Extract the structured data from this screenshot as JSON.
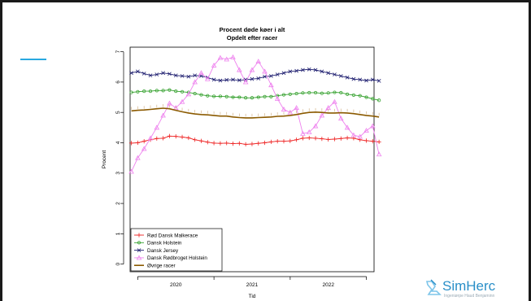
{
  "slide": {
    "logo_text": "SimHerc",
    "logo_subtitle": "Ingeniørpe Haud Benjaminn"
  },
  "chart_data": {
    "type": "line",
    "title": "Procent døde køer i alt",
    "subtitle": "Opdelt efter racer",
    "xlabel": "Tid",
    "ylabel": "Procent",
    "xlim": [
      2019.4,
      2022.6
    ],
    "ylim": [
      -0.25,
      7.15
    ],
    "xticks": [
      2020,
      2021,
      2022
    ],
    "yticks": [
      0,
      1,
      2,
      3,
      4,
      5,
      6,
      7
    ],
    "legend_position": "bottom-left",
    "x_start": 2019.4167,
    "x_step": 0.0833,
    "series": [
      {
        "name": "Rød Dansk Malkerace",
        "color": "#ee2222",
        "marker": "plus",
        "values": [
          3.99,
          4.0,
          4.05,
          4.1,
          4.14,
          4.15,
          4.22,
          4.21,
          4.19,
          4.16,
          4.1,
          4.06,
          4.02,
          3.99,
          3.98,
          3.99,
          3.97,
          3.98,
          3.95,
          3.96,
          3.98,
          4.0,
          4.03,
          4.05,
          4.05,
          4.06,
          4.1,
          4.15,
          4.16,
          4.15,
          4.13,
          4.11,
          4.12,
          4.14,
          4.16,
          4.15,
          4.1,
          4.07,
          4.05,
          4.03
        ]
      },
      {
        "name": "Dansk Holstein",
        "color": "#33a02c",
        "marker": "circle",
        "values": [
          5.66,
          5.68,
          5.7,
          5.7,
          5.72,
          5.72,
          5.74,
          5.7,
          5.68,
          5.66,
          5.62,
          5.58,
          5.55,
          5.53,
          5.53,
          5.52,
          5.5,
          5.5,
          5.48,
          5.48,
          5.5,
          5.52,
          5.52,
          5.55,
          5.58,
          5.6,
          5.62,
          5.64,
          5.65,
          5.65,
          5.63,
          5.64,
          5.66,
          5.65,
          5.6,
          5.57,
          5.55,
          5.5,
          5.45,
          5.4
        ]
      },
      {
        "name": "Dansk Jersey",
        "color": "#1c1c6e",
        "marker": "x",
        "values": [
          6.3,
          6.35,
          6.28,
          6.22,
          6.25,
          6.3,
          6.27,
          6.22,
          6.2,
          6.18,
          6.22,
          6.2,
          6.15,
          6.08,
          6.05,
          6.07,
          6.08,
          6.06,
          6.08,
          6.1,
          6.12,
          6.18,
          6.2,
          6.25,
          6.3,
          6.35,
          6.37,
          6.4,
          6.42,
          6.4,
          6.35,
          6.3,
          6.25,
          6.2,
          6.15,
          6.1,
          6.08,
          6.05,
          6.08,
          6.04
        ]
      },
      {
        "name": "Dansk Rødbroget Holstein",
        "color": "#ee82ee",
        "marker": "triangle",
        "values": [
          3.05,
          3.5,
          3.8,
          4.15,
          4.5,
          4.9,
          5.3,
          5.15,
          5.35,
          5.6,
          6.0,
          6.3,
          6.1,
          6.55,
          6.8,
          6.75,
          6.82,
          6.4,
          6.0,
          6.4,
          6.68,
          6.35,
          5.9,
          5.45,
          5.1,
          5.0,
          5.15,
          4.3,
          4.35,
          4.55,
          4.9,
          5.15,
          5.35,
          4.8,
          4.5,
          4.25,
          4.2,
          4.4,
          4.55,
          3.62
        ]
      },
      {
        "name": "Øvrige racer",
        "color": "#8b5a00",
        "marker": "none",
        "values": [
          5.05,
          5.07,
          5.08,
          5.1,
          5.12,
          5.14,
          5.12,
          5.07,
          5.02,
          4.98,
          4.95,
          4.93,
          4.92,
          4.9,
          4.88,
          4.88,
          4.85,
          4.83,
          4.82,
          4.82,
          4.83,
          4.84,
          4.85,
          4.87,
          4.88,
          4.9,
          4.93,
          4.97,
          5.0,
          5.01,
          5.0,
          4.98,
          4.98,
          4.99,
          4.98,
          4.96,
          4.93,
          4.9,
          4.88,
          4.85
        ]
      }
    ]
  }
}
